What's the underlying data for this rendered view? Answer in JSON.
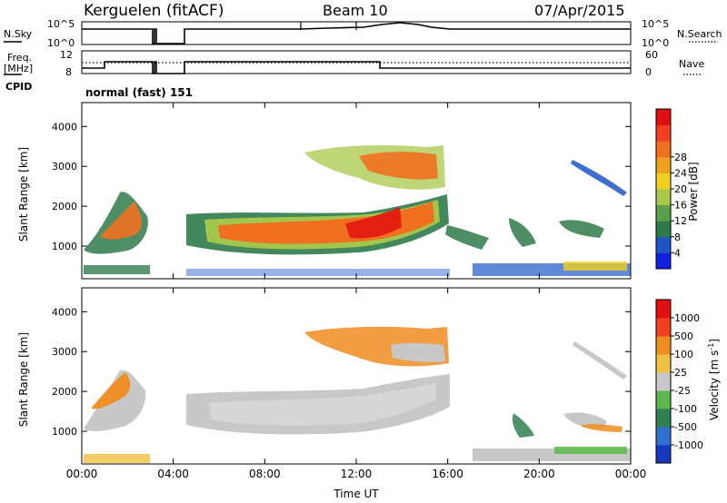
{
  "header": {
    "title": "Kerguelen (fitACF)",
    "beam": "Beam 10",
    "date": "07/Apr/2015",
    "mode": "normal (fast) 151"
  },
  "chart_data": [
    {
      "type": "line",
      "panel": "noise",
      "left_label": "N.Sky",
      "right_label": "N.Search",
      "left_ticks": [
        "10^5",
        "10^0"
      ],
      "right_ticks": [
        "10^5",
        "10^0"
      ],
      "x": [
        "00:00",
        "01:00",
        "02:00",
        "03:00",
        "03:10",
        "03:30",
        "04:00",
        "06:00",
        "08:00",
        "10:00",
        "12:00",
        "13:00",
        "14:00",
        "15:00",
        "16:00",
        "18:00",
        "20:00",
        "22:00",
        "24:00"
      ],
      "series": [
        {
          "values": [
            "high",
            "high",
            "high",
            "high",
            "gap",
            "gap",
            "high",
            "high",
            "high",
            "high",
            "high",
            "peak",
            "peak",
            "high",
            "high",
            "high",
            "high",
            "high",
            "high"
          ]
        }
      ]
    },
    {
      "type": "line",
      "panel": "frequency",
      "left_label": "Freq. [MHz]",
      "right_label": "Nave",
      "left_ticks": [
        "12",
        "8"
      ],
      "right_ticks": [
        "60",
        "0"
      ],
      "extra_label": "CPID",
      "x": [
        "00:00",
        "01:00",
        "01:30",
        "02:00",
        "03:00",
        "03:30",
        "04:00",
        "13:00",
        "24:00"
      ],
      "series": [
        {
          "values": [
            "low",
            "mid",
            "high",
            "high",
            "high",
            "gap",
            "high",
            "low",
            "low"
          ]
        }
      ]
    },
    {
      "type": "heatmap",
      "panel": "power",
      "ylabel": "Slant Range [km]",
      "yticks": [
        "1000",
        "2000",
        "3000",
        "4000"
      ],
      "ylim": [
        180,
        4600
      ],
      "xlim": [
        "00:00",
        "24:00"
      ],
      "colorbar": {
        "label": "Power [dB]",
        "ticks": [
          "4",
          "8",
          "12",
          "16",
          "20",
          "24",
          "28"
        ],
        "colors": [
          "#1020e0",
          "#1f55c8",
          "#2f7a4a",
          "#5aa04a",
          "#a8c84a",
          "#f0d020",
          "#f0a020",
          "#f07020",
          "#f04020",
          "#e01010"
        ]
      }
    },
    {
      "type": "heatmap",
      "panel": "velocity",
      "xlabel": "Time UT",
      "ylabel": "Slant Range [km]",
      "yticks": [
        "1000",
        "2000",
        "3000",
        "4000"
      ],
      "xticks": [
        "00:00",
        "04:00",
        "08:00",
        "12:00",
        "16:00",
        "20:00",
        "00:00"
      ],
      "ylim": [
        180,
        4600
      ],
      "xlim": [
        "00:00",
        "24:00"
      ],
      "colorbar": {
        "label": "Velocity [m s",
        "label_sup": "-1",
        "label_end": "]",
        "ticks": [
          "1000",
          "500",
          "100",
          "25",
          "-25",
          "-100",
          "-500",
          "-1000"
        ],
        "colors": [
          "#1538c0",
          "#2f6fd0",
          "#2f8050",
          "#5cb84a",
          "#c8c8c8",
          "#f0c040",
          "#f08c20",
          "#f04020",
          "#e01010"
        ]
      }
    }
  ]
}
